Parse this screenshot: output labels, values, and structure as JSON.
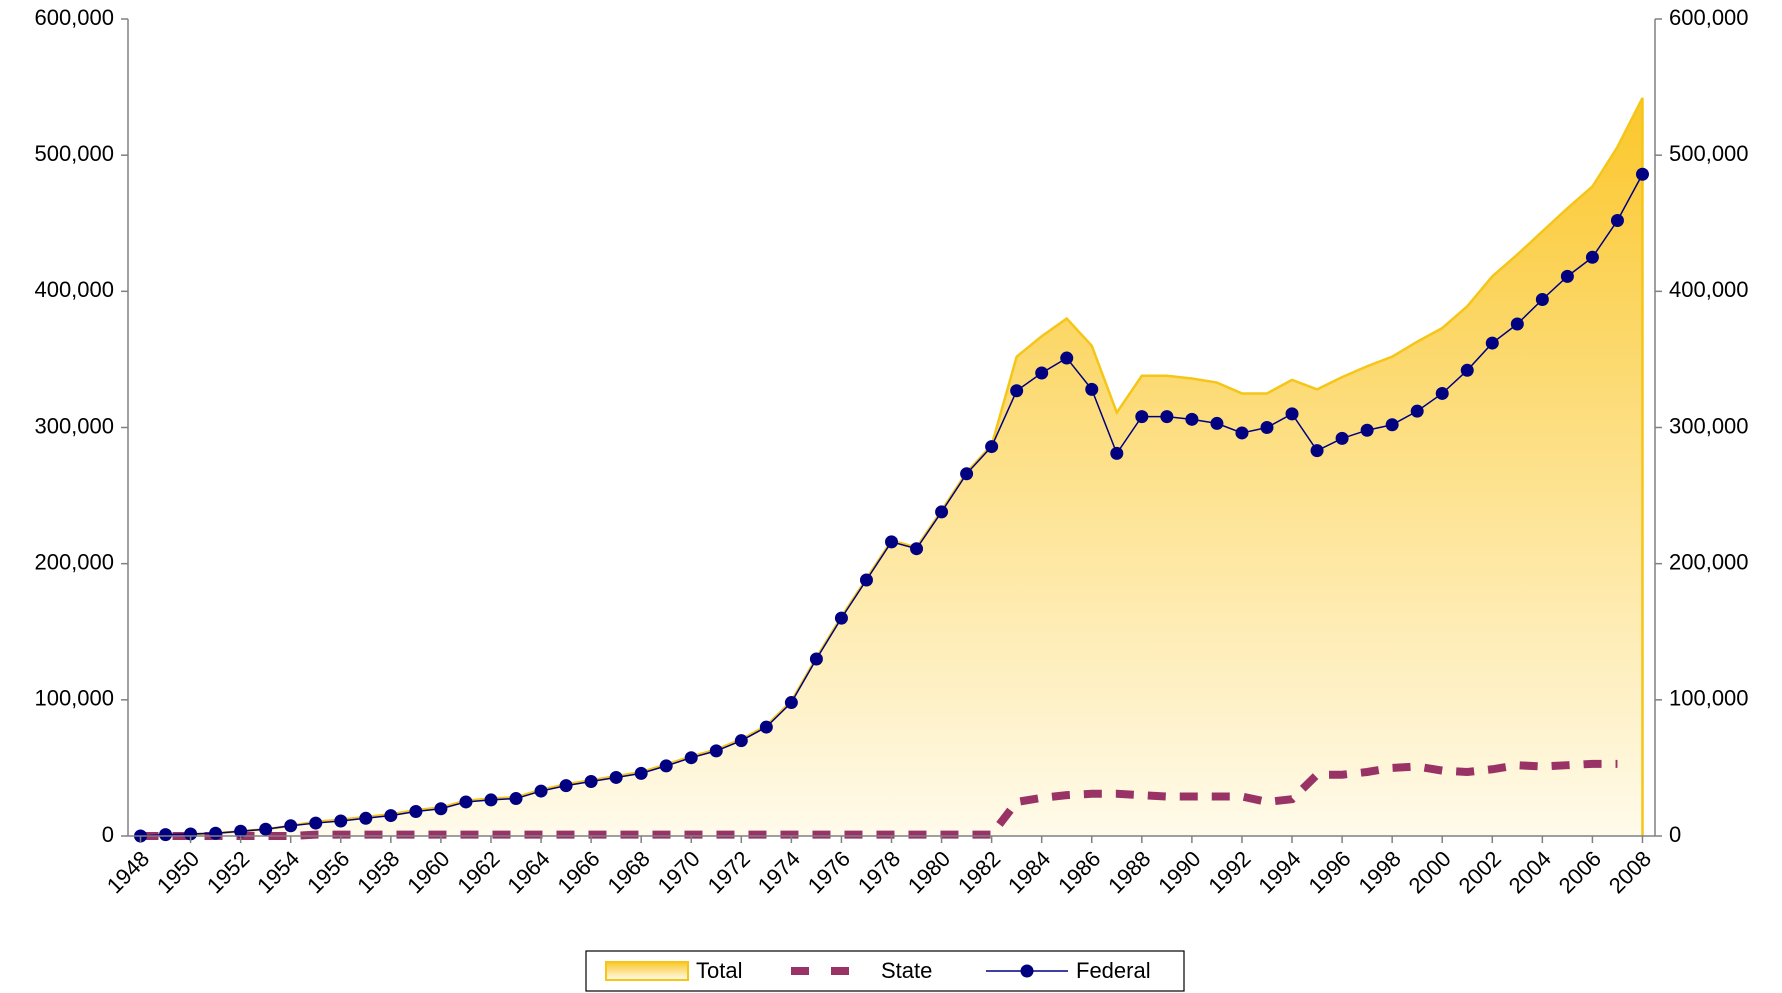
{
  "chart_data": {
    "type": "area-line",
    "x": [
      1948,
      1949,
      1950,
      1951,
      1952,
      1953,
      1954,
      1955,
      1956,
      1957,
      1958,
      1959,
      1960,
      1961,
      1962,
      1963,
      1964,
      1965,
      1966,
      1967,
      1968,
      1969,
      1970,
      1971,
      1972,
      1973,
      1974,
      1975,
      1976,
      1977,
      1978,
      1979,
      1980,
      1981,
      1982,
      1983,
      1984,
      1985,
      1986,
      1987,
      1988,
      1989,
      1990,
      1991,
      1992,
      1993,
      1994,
      1995,
      1996,
      1997,
      1998,
      1999,
      2000,
      2001,
      2002,
      2003,
      2004,
      2005,
      2006,
      2007,
      2008
    ],
    "xlim": [
      1947.5,
      2008.5
    ],
    "xticks": [
      1948,
      1950,
      1952,
      1954,
      1956,
      1958,
      1960,
      1962,
      1964,
      1966,
      1968,
      1970,
      1972,
      1974,
      1976,
      1978,
      1980,
      1982,
      1984,
      1986,
      1988,
      1990,
      1992,
      1994,
      1996,
      1998,
      2000,
      2002,
      2004,
      2006,
      2008
    ],
    "ylim": [
      0,
      600000
    ],
    "yticks": [
      0,
      {
        "value": 100000,
        "label": "100,000"
      },
      {
        "value": 200000,
        "label": "200,000"
      },
      {
        "value": 300000,
        "label": "300,000"
      },
      {
        "value": 400000,
        "label": "400,000"
      },
      {
        "value": 500000,
        "label": "500,000"
      },
      {
        "value": 600000,
        "label": "600,000"
      }
    ],
    "y2lim": [
      0,
      600000
    ],
    "y2ticks": [
      0,
      {
        "value": 100000,
        "label": "100,000"
      },
      {
        "value": 200000,
        "label": "200,000"
      },
      {
        "value": 300000,
        "label": "300,000"
      },
      {
        "value": 400000,
        "label": "400,000"
      },
      {
        "value": 500000,
        "label": "500,000"
      },
      {
        "value": 600000,
        "label": "600,000"
      }
    ],
    "legend": "bottom",
    "series": [
      {
        "name": "Total",
        "kind": "area",
        "color": "#f5c518",
        "values": [
          0,
          1000,
          1500,
          2000,
          3500,
          5000,
          7500,
          10500,
          12000,
          14000,
          16000,
          19000,
          21000,
          26000,
          27500,
          28500,
          34000,
          38000,
          41000,
          44000,
          47000,
          52500,
          58500,
          63500,
          71000,
          81000,
          99000,
          131000,
          161000,
          189000,
          217000,
          212000,
          239000,
          267000,
          287000,
          352000,
          367000,
          380000,
          360000,
          311000,
          338000,
          338000,
          336000,
          333000,
          325000,
          325000,
          335000,
          328000,
          337000,
          345000,
          352000,
          363000,
          373000,
          389000,
          411000,
          427000,
          444000,
          461000,
          477000,
          506000,
          542000
        ]
      },
      {
        "name": "State",
        "kind": "dashed",
        "color": "#993366",
        "values": [
          0,
          0,
          0,
          0,
          0,
          0,
          0,
          1000,
          1000,
          1000,
          1000,
          1000,
          1000,
          1000,
          1000,
          1000,
          1000,
          1000,
          1000,
          1000,
          1000,
          1000,
          1000,
          1000,
          1000,
          1000,
          1000,
          1000,
          1000,
          1000,
          1000,
          1000,
          1000,
          1000,
          1000,
          25000,
          28000,
          30000,
          31000,
          31000,
          30000,
          29000,
          29000,
          29000,
          29000,
          25000,
          27000,
          45000,
          45000,
          47000,
          50000,
          51000,
          48000,
          47000,
          49000,
          52000,
          51000,
          52000,
          53000,
          53000,
          null
        ]
      },
      {
        "name": "Federal",
        "kind": "markers",
        "color": "#000080",
        "values": [
          0,
          1000,
          1500,
          2000,
          3500,
          5000,
          7500,
          9500,
          11000,
          13000,
          15000,
          18000,
          20000,
          25000,
          26500,
          27500,
          33000,
          37000,
          40000,
          43000,
          46000,
          51500,
          57500,
          62500,
          70000,
          80000,
          98000,
          130000,
          160000,
          188000,
          216000,
          211000,
          238000,
          266000,
          286000,
          327000,
          340000,
          351000,
          328000,
          281000,
          308000,
          308000,
          306000,
          303000,
          296000,
          300000,
          310000,
          283000,
          292000,
          298000,
          302000,
          312000,
          325000,
          342000,
          362000,
          376000,
          394000,
          411000,
          425000,
          452000,
          486000
        ]
      }
    ]
  }
}
